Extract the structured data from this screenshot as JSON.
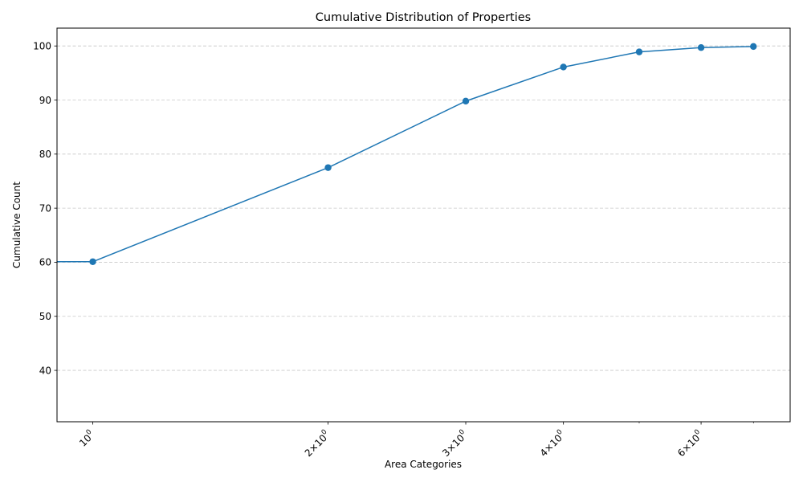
{
  "chart_data": {
    "type": "line",
    "title": "Cumulative Distribution of Properties",
    "xlabel": "Area Categories",
    "ylabel": "Cumulative Count",
    "x_scale": "log",
    "x": [
      1,
      2,
      3,
      4,
      5,
      6,
      7
    ],
    "series": [
      {
        "values": [
          60.1,
          77.5,
          89.8,
          96.1,
          98.9,
          99.7,
          99.9
        ],
        "color": "#1f77b4",
        "marker": "circle"
      }
    ],
    "xlim": [
      0.9,
      7.8
    ],
    "ylim": [
      30.5,
      103.3
    ],
    "x_ticks": [
      {
        "value": 1,
        "base": "10",
        "exp": "0",
        "prefix": ""
      },
      {
        "value": 2,
        "base": "10",
        "exp": "0",
        "prefix": "2×"
      },
      {
        "value": 3,
        "base": "10",
        "exp": "0",
        "prefix": "3×"
      },
      {
        "value": 4,
        "base": "10",
        "exp": "0",
        "prefix": "4×"
      },
      {
        "value": 6,
        "base": "10",
        "exp": "0",
        "prefix": "6×"
      }
    ],
    "x_minor_ticks": [
      5,
      7
    ],
    "y_ticks": [
      40,
      50,
      60,
      70,
      80,
      90,
      100
    ],
    "grid": "y-dashed",
    "leading_segment_from_x": 0.9
  }
}
